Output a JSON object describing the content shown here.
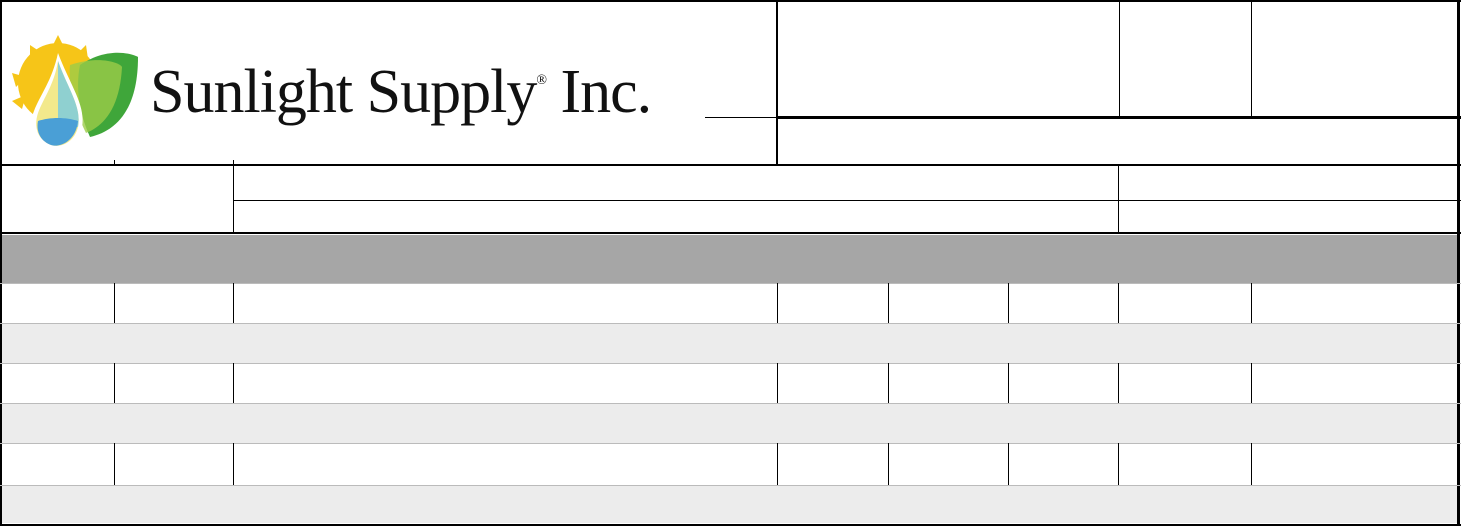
{
  "logo": {
    "company": "Sunlight Supply",
    "registered": "®",
    "suffix": " Inc."
  },
  "colors": {
    "header_band": "#a6a6a6",
    "alt_row": "#ececec",
    "sun": "#f6c518",
    "leaf": "#3fa63a",
    "drop": "#4a9fd6"
  },
  "form": {
    "header_band_text": "",
    "rows": [
      {
        "type": "item",
        "cells": [
          "",
          "",
          "",
          "",
          "",
          "",
          "",
          ""
        ]
      },
      {
        "type": "note",
        "text": ""
      },
      {
        "type": "item",
        "cells": [
          "",
          "",
          "",
          "",
          "",
          "",
          "",
          ""
        ]
      },
      {
        "type": "note",
        "text": ""
      },
      {
        "type": "item",
        "cells": [
          "",
          "",
          "",
          "",
          "",
          "",
          "",
          ""
        ]
      },
      {
        "type": "note",
        "text": ""
      }
    ]
  }
}
